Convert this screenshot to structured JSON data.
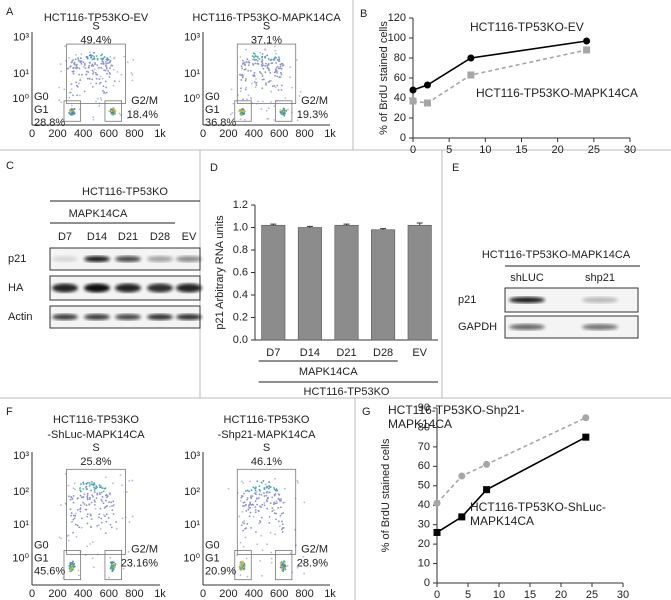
{
  "panel_letters": [
    "A",
    "B",
    "C",
    "D",
    "E",
    "F",
    "G"
  ],
  "flow_A": {
    "yticks": [
      "10³",
      "10¹",
      "10⁰"
    ],
    "xticks": [
      "0",
      "200",
      "400",
      "600",
      "800",
      "1k"
    ],
    "plots": [
      {
        "title_lines": [
          "HCT116-TP53KO-EV"
        ],
        "s_label": "S",
        "s_pct": "49.4%",
        "g0": "G0",
        "g1": "G1",
        "g1_pct": "28.8%",
        "g2m_label": "G2/M",
        "g2m_pct": "18.4%"
      },
      {
        "title_lines": [
          "HCT116-TP53KO-MAPK14CA"
        ],
        "s_label": "S",
        "s_pct": "37.1%",
        "g0": "G0",
        "g1": "G1",
        "g1_pct": "36.8%",
        "g2m_label": "G2/M",
        "g2m_pct": "19.3%"
      }
    ]
  },
  "flow_F": {
    "yticks": [
      "10³",
      "10²",
      "10¹",
      "10⁰"
    ],
    "xticks": [
      "0",
      "200",
      "400",
      "600",
      "800",
      "1k"
    ],
    "plots": [
      {
        "title_lines": [
          "HCT116-TP53KO",
          "-ShLuc-MAPK14CA"
        ],
        "s_label": "S",
        "s_pct": "25.8%",
        "g0": "G0",
        "g1": "G1",
        "g1_pct": "45.6%",
        "g2m_label": "G2/M",
        "g2m_pct": "23.16%"
      },
      {
        "title_lines": [
          "HCT116-TP53KO",
          "-Shp21-MAPK14CA"
        ],
        "s_label": "S",
        "s_pct": "46.1%",
        "g0": "G0",
        "g1": "G1",
        "g1_pct": "20.9%",
        "g2m_label": "G2/M",
        "g2m_pct": "28.9%"
      }
    ]
  },
  "blot_C": {
    "header": "HCT116-TP53KO",
    "subheader": "MAPK14CA",
    "lanes": [
      "D7",
      "D14",
      "D21",
      "D28",
      "EV"
    ],
    "rows": [
      "p21",
      "HA",
      "Actin"
    ]
  },
  "blot_E": {
    "header": "HCT116-TP53KO-MAPK14CA",
    "lanes": [
      "shLUC",
      "shp21"
    ],
    "rows": [
      "p21",
      "GAPDH"
    ]
  },
  "chart_data": [
    {
      "type": "line",
      "ylabel": "% of BrdU stained cells",
      "x": [
        0,
        2,
        8,
        24
      ],
      "xlim": [
        0,
        30
      ],
      "xticks": [
        0,
        5,
        10,
        15,
        20,
        25,
        30
      ],
      "ylim": [
        0,
        120
      ],
      "yticks": [
        0,
        20,
        40,
        60,
        80,
        100,
        120
      ],
      "series": [
        {
          "name": "HCT116-TP53KO-EV",
          "color": "#000000",
          "dashed": false,
          "marker": "circle",
          "values": [
            48,
            53,
            80,
            97
          ]
        },
        {
          "name": "HCT116-TP53KO-MAPK14CA",
          "color": "#a6a6a6",
          "dashed": true,
          "marker": "square",
          "values": [
            37,
            35,
            63,
            88
          ]
        }
      ]
    },
    {
      "type": "bar",
      "ylabel": "p21 Arbitrary RNA units",
      "color": "#8c8c8c",
      "categories": [
        "D7",
        "D14",
        "D21",
        "D28",
        "EV"
      ],
      "values": [
        1.02,
        1.0,
        1.02,
        0.98,
        1.02
      ],
      "errors": [
        0.01,
        0.01,
        0.01,
        0.01,
        0.02
      ],
      "group_labels": [
        "MAPK14CA",
        "HCT116-TP53KO"
      ],
      "ylim": [
        0,
        1.2
      ],
      "yticks": [
        {
          "value": 0,
          "label": "0.0"
        },
        {
          "value": 0.2,
          "label": "0.2"
        },
        {
          "value": 0.4,
          "label": "0.4"
        },
        {
          "value": 0.6,
          "label": "0.6"
        },
        {
          "value": 0.8,
          "label": "0.8"
        },
        {
          "value": 1,
          "label": "1.0"
        },
        {
          "value": 1.2,
          "label": "1.2"
        }
      ]
    },
    {
      "type": "line",
      "ylabel": "% of BrdU stained cells",
      "x": [
        0,
        4,
        8,
        24
      ],
      "xlim": [
        0,
        30
      ],
      "xticks": [
        0,
        5,
        10,
        15,
        20,
        25,
        30
      ],
      "ylim": [
        0,
        90
      ],
      "yticks": [
        0,
        10,
        20,
        30,
        40,
        50,
        60,
        70,
        80,
        90
      ],
      "series": [
        {
          "name": "HCT116-TP53KO-Shp21-MAPK14CA",
          "color": "#a6a6a6",
          "dashed": true,
          "marker": "circle",
          "values": [
            41,
            55,
            61,
            85
          ]
        },
        {
          "name": "HCT116-TP53KO-ShLuc-MAPK14CA",
          "color": "#000000",
          "dashed": false,
          "marker": "square",
          "values": [
            26,
            34,
            48,
            75
          ]
        }
      ]
    }
  ]
}
